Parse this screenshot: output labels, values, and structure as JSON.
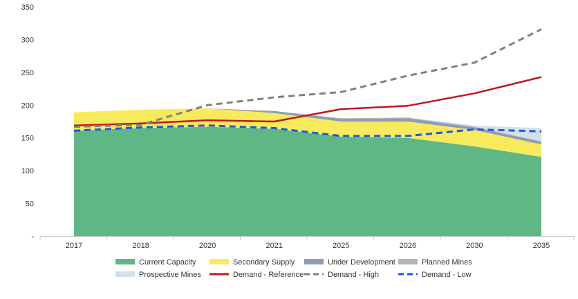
{
  "chart_data": {
    "type": "area",
    "categories": [
      "2017",
      "2018",
      "2020",
      "2021",
      "2025",
      "2026",
      "2030",
      "2035"
    ],
    "y_ticks": [
      "350",
      "300",
      "250",
      "200",
      "150",
      "100",
      "50",
      "-"
    ],
    "y_tick_values": [
      350,
      300,
      250,
      200,
      150,
      100,
      50,
      0
    ],
    "ylim": [
      0,
      350
    ],
    "grid": false,
    "legend_position": "bottom",
    "series": [
      {
        "name": "Current Capacity",
        "kind": "area",
        "color": "#5fb785",
        "values": [
          161,
          165,
          167,
          164,
          152,
          150,
          137,
          121
        ]
      },
      {
        "name": "Secondary Supply",
        "kind": "area",
        "color": "#f7ea5c",
        "values": [
          28,
          28,
          28,
          24,
          23,
          25,
          25,
          19
        ]
      },
      {
        "name": "Under Development",
        "kind": "area",
        "color": "#8e9bb5",
        "values": [
          0,
          0,
          0,
          3,
          4,
          5,
          4,
          4
        ]
      },
      {
        "name": "Planned Mines",
        "kind": "area",
        "color": "#b5b5b5",
        "values": [
          0,
          0,
          0,
          0,
          1,
          1,
          1,
          1
        ]
      },
      {
        "name": "Prospective Mines",
        "kind": "area",
        "color": "#d3e0ea",
        "values": [
          0,
          0,
          0,
          0,
          0,
          0,
          2,
          20
        ]
      },
      {
        "name": "Demand - Reference",
        "kind": "line",
        "color": "#c0161c",
        "dash": "solid",
        "values": [
          169,
          172,
          177,
          175,
          194,
          199,
          218,
          243
        ]
      },
      {
        "name": "Demand - High",
        "kind": "line",
        "color": "#808080",
        "dash": "dash",
        "values": [
          167,
          170,
          200,
          212,
          220,
          245,
          265,
          316
        ]
      },
      {
        "name": "Demand - Low",
        "kind": "line",
        "color": "#1a56e8",
        "dash": "dash",
        "values": [
          161,
          166,
          169,
          165,
          153,
          153,
          163,
          160
        ]
      }
    ]
  }
}
